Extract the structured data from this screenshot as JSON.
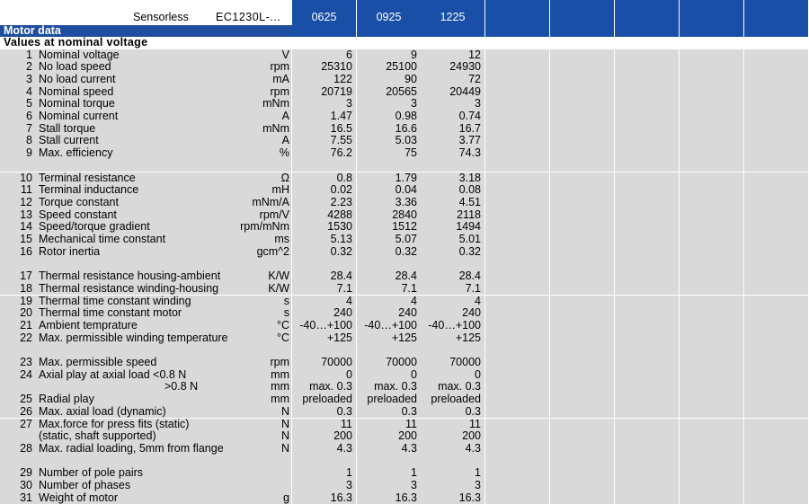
{
  "header": {
    "sensorless": "Sensorless",
    "model": "EC1230L-...",
    "motor_data": "Motor data",
    "columns": [
      "0625",
      "0925",
      "1225",
      "",
      "",
      "",
      "",
      ""
    ]
  },
  "section_title": "Values at nominal voltage",
  "rows": [
    {
      "n": "1",
      "label": "Nominal voltage",
      "unit": "V",
      "v": [
        "6",
        "9",
        "12"
      ]
    },
    {
      "n": "2",
      "label": "No load speed",
      "unit": "rpm",
      "v": [
        "25310",
        "25100",
        "24930"
      ]
    },
    {
      "n": "3",
      "label": "No load current",
      "unit": "mA",
      "v": [
        "122",
        "90",
        "72"
      ]
    },
    {
      "n": "4",
      "label": "Nominal speed",
      "unit": "rpm",
      "v": [
        "20719",
        "20565",
        "20449"
      ]
    },
    {
      "n": "5",
      "label": "Nominal torque",
      "unit": "mNm",
      "v": [
        "3",
        "3",
        "3"
      ]
    },
    {
      "n": "6",
      "label": "Nominal current",
      "unit": "A",
      "v": [
        "1.47",
        "0.98",
        "0.74"
      ]
    },
    {
      "n": "7",
      "label": "Stall torque",
      "unit": "mNm",
      "v": [
        "16.5",
        "16.6",
        "16.7"
      ]
    },
    {
      "n": "8",
      "label": "Stall current",
      "unit": "A",
      "v": [
        "7.55",
        "5.03",
        "3.77"
      ]
    },
    {
      "n": "9",
      "label": "Max. efficiency",
      "unit": "%",
      "v": [
        "76.2",
        "75",
        "74.3"
      ]
    },
    {
      "blank": true
    },
    {
      "n": "10",
      "label": "Terminal resistance",
      "unit": "Ω",
      "v": [
        "0.8",
        "1.79",
        "3.18"
      ]
    },
    {
      "n": "11",
      "label": "Terminal inductance",
      "unit": "mH",
      "v": [
        "0.02",
        "0.04",
        "0.08"
      ]
    },
    {
      "n": "12",
      "label": "Torque constant",
      "unit": "mNm/A",
      "v": [
        "2.23",
        "3.36",
        "4.51"
      ]
    },
    {
      "n": "13",
      "label": "Speed constant",
      "unit": "rpm/V",
      "v": [
        "4288",
        "2840",
        "2118"
      ]
    },
    {
      "n": "14",
      "label": "Speed/torque gradient",
      "unit": "rpm/mNm",
      "v": [
        "1530",
        "1512",
        "1494"
      ]
    },
    {
      "n": "15",
      "label": "Mechanical time constant",
      "unit": "ms",
      "v": [
        "5.13",
        "5.07",
        "5.01"
      ]
    },
    {
      "n": "16",
      "label": "Rotor inertia",
      "unit": "gcm^2",
      "v": [
        "0.32",
        "0.32",
        "0.32"
      ]
    },
    {
      "blank": true
    },
    {
      "n": "17",
      "label": "Thermal resistance housing-ambient",
      "unit": "K/W",
      "v": [
        "28.4",
        "28.4",
        "28.4"
      ]
    },
    {
      "n": "18",
      "label": "Thermal resistance winding-housing",
      "unit": "K/W",
      "v": [
        "7.1",
        "7.1",
        "7.1"
      ]
    },
    {
      "n": "19",
      "label": "Thermal time constant winding",
      "unit": "s",
      "v": [
        "4",
        "4",
        "4"
      ]
    },
    {
      "n": "20",
      "label": "Thermal time constant motor",
      "unit": "s",
      "v": [
        "240",
        "240",
        "240"
      ]
    },
    {
      "n": "21",
      "label": "Ambient temprature",
      "unit": "°C",
      "v": [
        "-40…+100",
        "-40…+100",
        "-40…+100"
      ]
    },
    {
      "n": "22",
      "label": "Max. permissible winding temperature",
      "unit": "°C",
      "v": [
        "+125",
        "+125",
        "+125"
      ]
    },
    {
      "blank": true
    },
    {
      "n": "23",
      "label": "Max. permissible speed",
      "unit": "rpm",
      "v": [
        "70000",
        "70000",
        "70000"
      ]
    },
    {
      "n": "24",
      "label": "Axial play at axial load  <0.8 N",
      "unit": "mm",
      "v": [
        "0",
        "0",
        "0"
      ]
    },
    {
      "n": "",
      "label": ">0.8 N",
      "unit": "mm",
      "v": [
        "max. 0.3",
        "max. 0.3",
        "max. 0.3"
      ],
      "indent": true
    },
    {
      "n": "25",
      "label": "Radial play",
      "unit": "mm",
      "v": [
        "preloaded",
        "preloaded",
        "preloaded"
      ]
    },
    {
      "n": "26",
      "label": "Max. axial load (dynamic)",
      "unit": "N",
      "v": [
        "0.3",
        "0.3",
        "0.3"
      ]
    },
    {
      "n": "27",
      "label": "Max.force for press fits (static)",
      "unit": "N",
      "v": [
        "11",
        "11",
        "11"
      ]
    },
    {
      "n": "",
      "label": "(static, shaft supported)",
      "unit": "N",
      "v": [
        "200",
        "200",
        "200"
      ]
    },
    {
      "n": "28",
      "label": "Max. radial loading, 5mm from flange",
      "unit": "N",
      "v": [
        "4.3",
        "4.3",
        "4.3"
      ]
    },
    {
      "blank": true
    },
    {
      "n": "29",
      "label": "Number of pole pairs",
      "unit": "",
      "v": [
        "1",
        "1",
        "1"
      ]
    },
    {
      "n": "30",
      "label": "Number of phases",
      "unit": "",
      "v": [
        "3",
        "3",
        "3"
      ]
    },
    {
      "n": "31",
      "label": "Weight of motor",
      "unit": "g",
      "v": [
        "16.3",
        "16.3",
        "16.3"
      ]
    }
  ]
}
